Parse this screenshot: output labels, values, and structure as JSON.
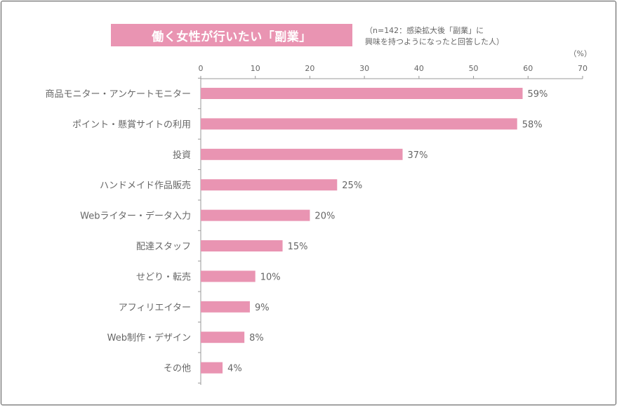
{
  "title": "働く女性が行いたい「副業」",
  "note_lines": [
    "（n=142：感染拡大後「副業」に",
    "興味を持つようになったと回答した人）"
  ],
  "unit": "（%）",
  "colors": {
    "bar": "#e994b2",
    "axis": "#999999",
    "text": "#666666"
  },
  "chart_data": {
    "type": "bar",
    "orientation": "horizontal",
    "categories": [
      "商品モニター・アンケートモニター",
      "ポイント・懸賞サイトの利用",
      "投資",
      "ハンドメイド作品販売",
      "Webライター・データ入力",
      "配達スタッフ",
      "せどり・転売",
      "アフィリエイター",
      "Web制作・デザイン",
      "その他"
    ],
    "values": [
      59,
      58,
      37,
      25,
      20,
      15,
      10,
      9,
      8,
      4
    ],
    "value_labels": [
      "59%",
      "58%",
      "37%",
      "25%",
      "20%",
      "15%",
      "10%",
      "9%",
      "8%",
      "4%"
    ],
    "xlim": [
      0,
      70
    ],
    "ticks": [
      0,
      10,
      20,
      30,
      40,
      50,
      60,
      70
    ],
    "tick_labels": [
      "0",
      "10",
      "20",
      "30",
      "40",
      "50",
      "60",
      "70"
    ],
    "grid": false,
    "legend": "none"
  }
}
